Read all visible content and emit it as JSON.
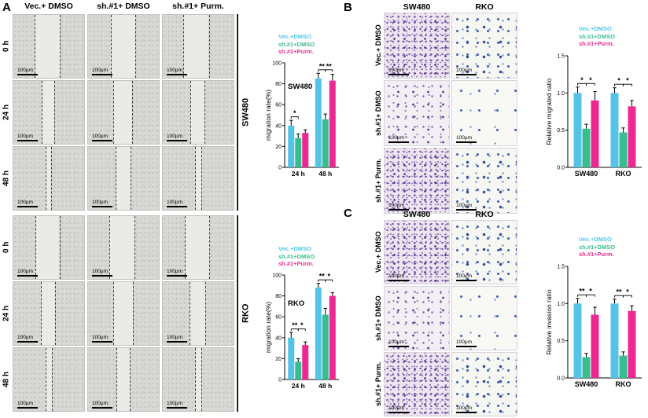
{
  "colors": {
    "vec": "#54c3e6",
    "sh": "#38bd8e",
    "purm": "#ec2990"
  },
  "scale_label": "100μm",
  "panelA": {
    "label": "A",
    "col_headers": [
      "Vec.+ DMSO",
      "sh.#1+ DMSO",
      "sh.#1+ Purm."
    ],
    "groups": [
      {
        "name": "SW480",
        "rows": [
          "0 h",
          "24 h",
          "48 h"
        ]
      },
      {
        "name": "RKO",
        "rows": [
          "0 h",
          "24 h",
          "48 h"
        ]
      }
    ]
  },
  "panelB": {
    "label": "B",
    "col_headers": [
      "SW480",
      "RKO"
    ],
    "row_labels": [
      "Vec.+ DMSO",
      "sh.#1+ DMSO",
      "sh.#1+ Purm."
    ]
  },
  "panelC": {
    "label": "C",
    "col_headers": [
      "SW480",
      "RKO"
    ],
    "row_labels": [
      "Vec.+ DMSO",
      "sh.#1+ DMSO",
      "sh.#1+ Purm."
    ]
  },
  "chart_data": [
    {
      "id": "sw480-migration",
      "type": "bar",
      "title": "SW480",
      "ylabel": "migration rate(%)",
      "ylim": [
        0,
        100
      ],
      "yticks": [
        0,
        20,
        40,
        60,
        80,
        100
      ],
      "ytick_labels": [
        "0",
        "20",
        "40",
        "60",
        "80",
        "100"
      ],
      "categories": [
        "24 h",
        "48 h"
      ],
      "series": [
        {
          "name": "Vec.+DMSO",
          "color_key": "vec",
          "values": [
            40,
            85
          ],
          "errors": [
            5,
            5
          ]
        },
        {
          "name": "sh.#1+DMSO",
          "color_key": "sh",
          "values": [
            28,
            46
          ],
          "errors": [
            4,
            5
          ]
        },
        {
          "name": "sh.#1+Purm.",
          "color_key": "purm",
          "values": [
            33,
            83
          ],
          "errors": [
            3,
            6
          ]
        }
      ],
      "significance": [
        {
          "category": 0,
          "bars": [
            0,
            1
          ],
          "label": "*"
        },
        {
          "category": 1,
          "bars": [
            0,
            1
          ],
          "label": "**"
        },
        {
          "category": 1,
          "bars": [
            1,
            2
          ],
          "label": "**"
        }
      ]
    },
    {
      "id": "rko-migration",
      "type": "bar",
      "title": "RKO",
      "ylabel": "migration rate(%)",
      "ylim": [
        0,
        100
      ],
      "yticks": [
        0,
        20,
        40,
        60,
        80,
        100
      ],
      "ytick_labels": [
        "0",
        "20",
        "40",
        "60",
        "80",
        "100"
      ],
      "categories": [
        "24 h",
        "48 h"
      ],
      "series": [
        {
          "name": "Vec.+DMSO",
          "color_key": "vec",
          "values": [
            40,
            88
          ],
          "errors": [
            5,
            4
          ]
        },
        {
          "name": "sh.#1+DMSO",
          "color_key": "sh",
          "values": [
            17,
            62
          ],
          "errors": [
            3,
            6
          ]
        },
        {
          "name": "sh.#1+Purm.",
          "color_key": "purm",
          "values": [
            33,
            80
          ],
          "errors": [
            3,
            3
          ]
        }
      ],
      "significance": [
        {
          "category": 0,
          "bars": [
            0,
            1
          ],
          "label": "**"
        },
        {
          "category": 0,
          "bars": [
            1,
            2
          ],
          "label": "*"
        },
        {
          "category": 1,
          "bars": [
            0,
            1
          ],
          "label": "**"
        },
        {
          "category": 1,
          "bars": [
            1,
            2
          ],
          "label": "*"
        }
      ]
    },
    {
      "id": "migrated-ratio",
      "type": "bar",
      "title": "",
      "ylabel": "Relative migrated ratio",
      "ylim": [
        0,
        1.5
      ],
      "yticks": [
        0,
        0.5,
        1.0,
        1.5
      ],
      "ytick_labels": [
        "0.0",
        "0.5",
        "1.0",
        "1.5"
      ],
      "categories": [
        "SW480",
        "RKO"
      ],
      "series": [
        {
          "name": "Vec.+DMSO",
          "color_key": "vec",
          "values": [
            1.0,
            1.0
          ],
          "errors": [
            0.08,
            0.07
          ]
        },
        {
          "name": "sh.#1+DMSO",
          "color_key": "sh",
          "values": [
            0.52,
            0.47
          ],
          "errors": [
            0.06,
            0.06
          ]
        },
        {
          "name": "sh.#1+Purm.",
          "color_key": "purm",
          "values": [
            0.9,
            0.82
          ],
          "errors": [
            0.12,
            0.08
          ]
        }
      ],
      "significance": [
        {
          "category": 0,
          "bars": [
            0,
            1
          ],
          "label": "*"
        },
        {
          "category": 0,
          "bars": [
            1,
            2
          ],
          "label": "*"
        },
        {
          "category": 1,
          "bars": [
            0,
            1
          ],
          "label": "*"
        },
        {
          "category": 1,
          "bars": [
            1,
            2
          ],
          "label": "*"
        }
      ]
    },
    {
      "id": "invasion-ratio",
      "type": "bar",
      "title": "",
      "ylabel": "Relative invasion ratio",
      "ylim": [
        0,
        1.5
      ],
      "yticks": [
        0,
        0.5,
        1.0,
        1.5
      ],
      "ytick_labels": [
        "0.0",
        "0.5",
        "1.0",
        "1.5"
      ],
      "categories": [
        "SW480",
        "RKO"
      ],
      "series": [
        {
          "name": "Vec.+DMSO",
          "color_key": "vec",
          "values": [
            1.0,
            1.0
          ],
          "errors": [
            0.07,
            0.06
          ]
        },
        {
          "name": "sh.#1+DMSO",
          "color_key": "sh",
          "values": [
            0.28,
            0.3
          ],
          "errors": [
            0.05,
            0.05
          ]
        },
        {
          "name": "sh.#1+Purm.",
          "color_key": "purm",
          "values": [
            0.85,
            0.9
          ],
          "errors": [
            0.1,
            0.07
          ]
        }
      ],
      "significance": [
        {
          "category": 0,
          "bars": [
            0,
            1
          ],
          "label": "**"
        },
        {
          "category": 0,
          "bars": [
            1,
            2
          ],
          "label": "*"
        },
        {
          "category": 1,
          "bars": [
            0,
            1
          ],
          "label": "**"
        },
        {
          "category": 1,
          "bars": [
            1,
            2
          ],
          "label": "*"
        }
      ]
    }
  ]
}
